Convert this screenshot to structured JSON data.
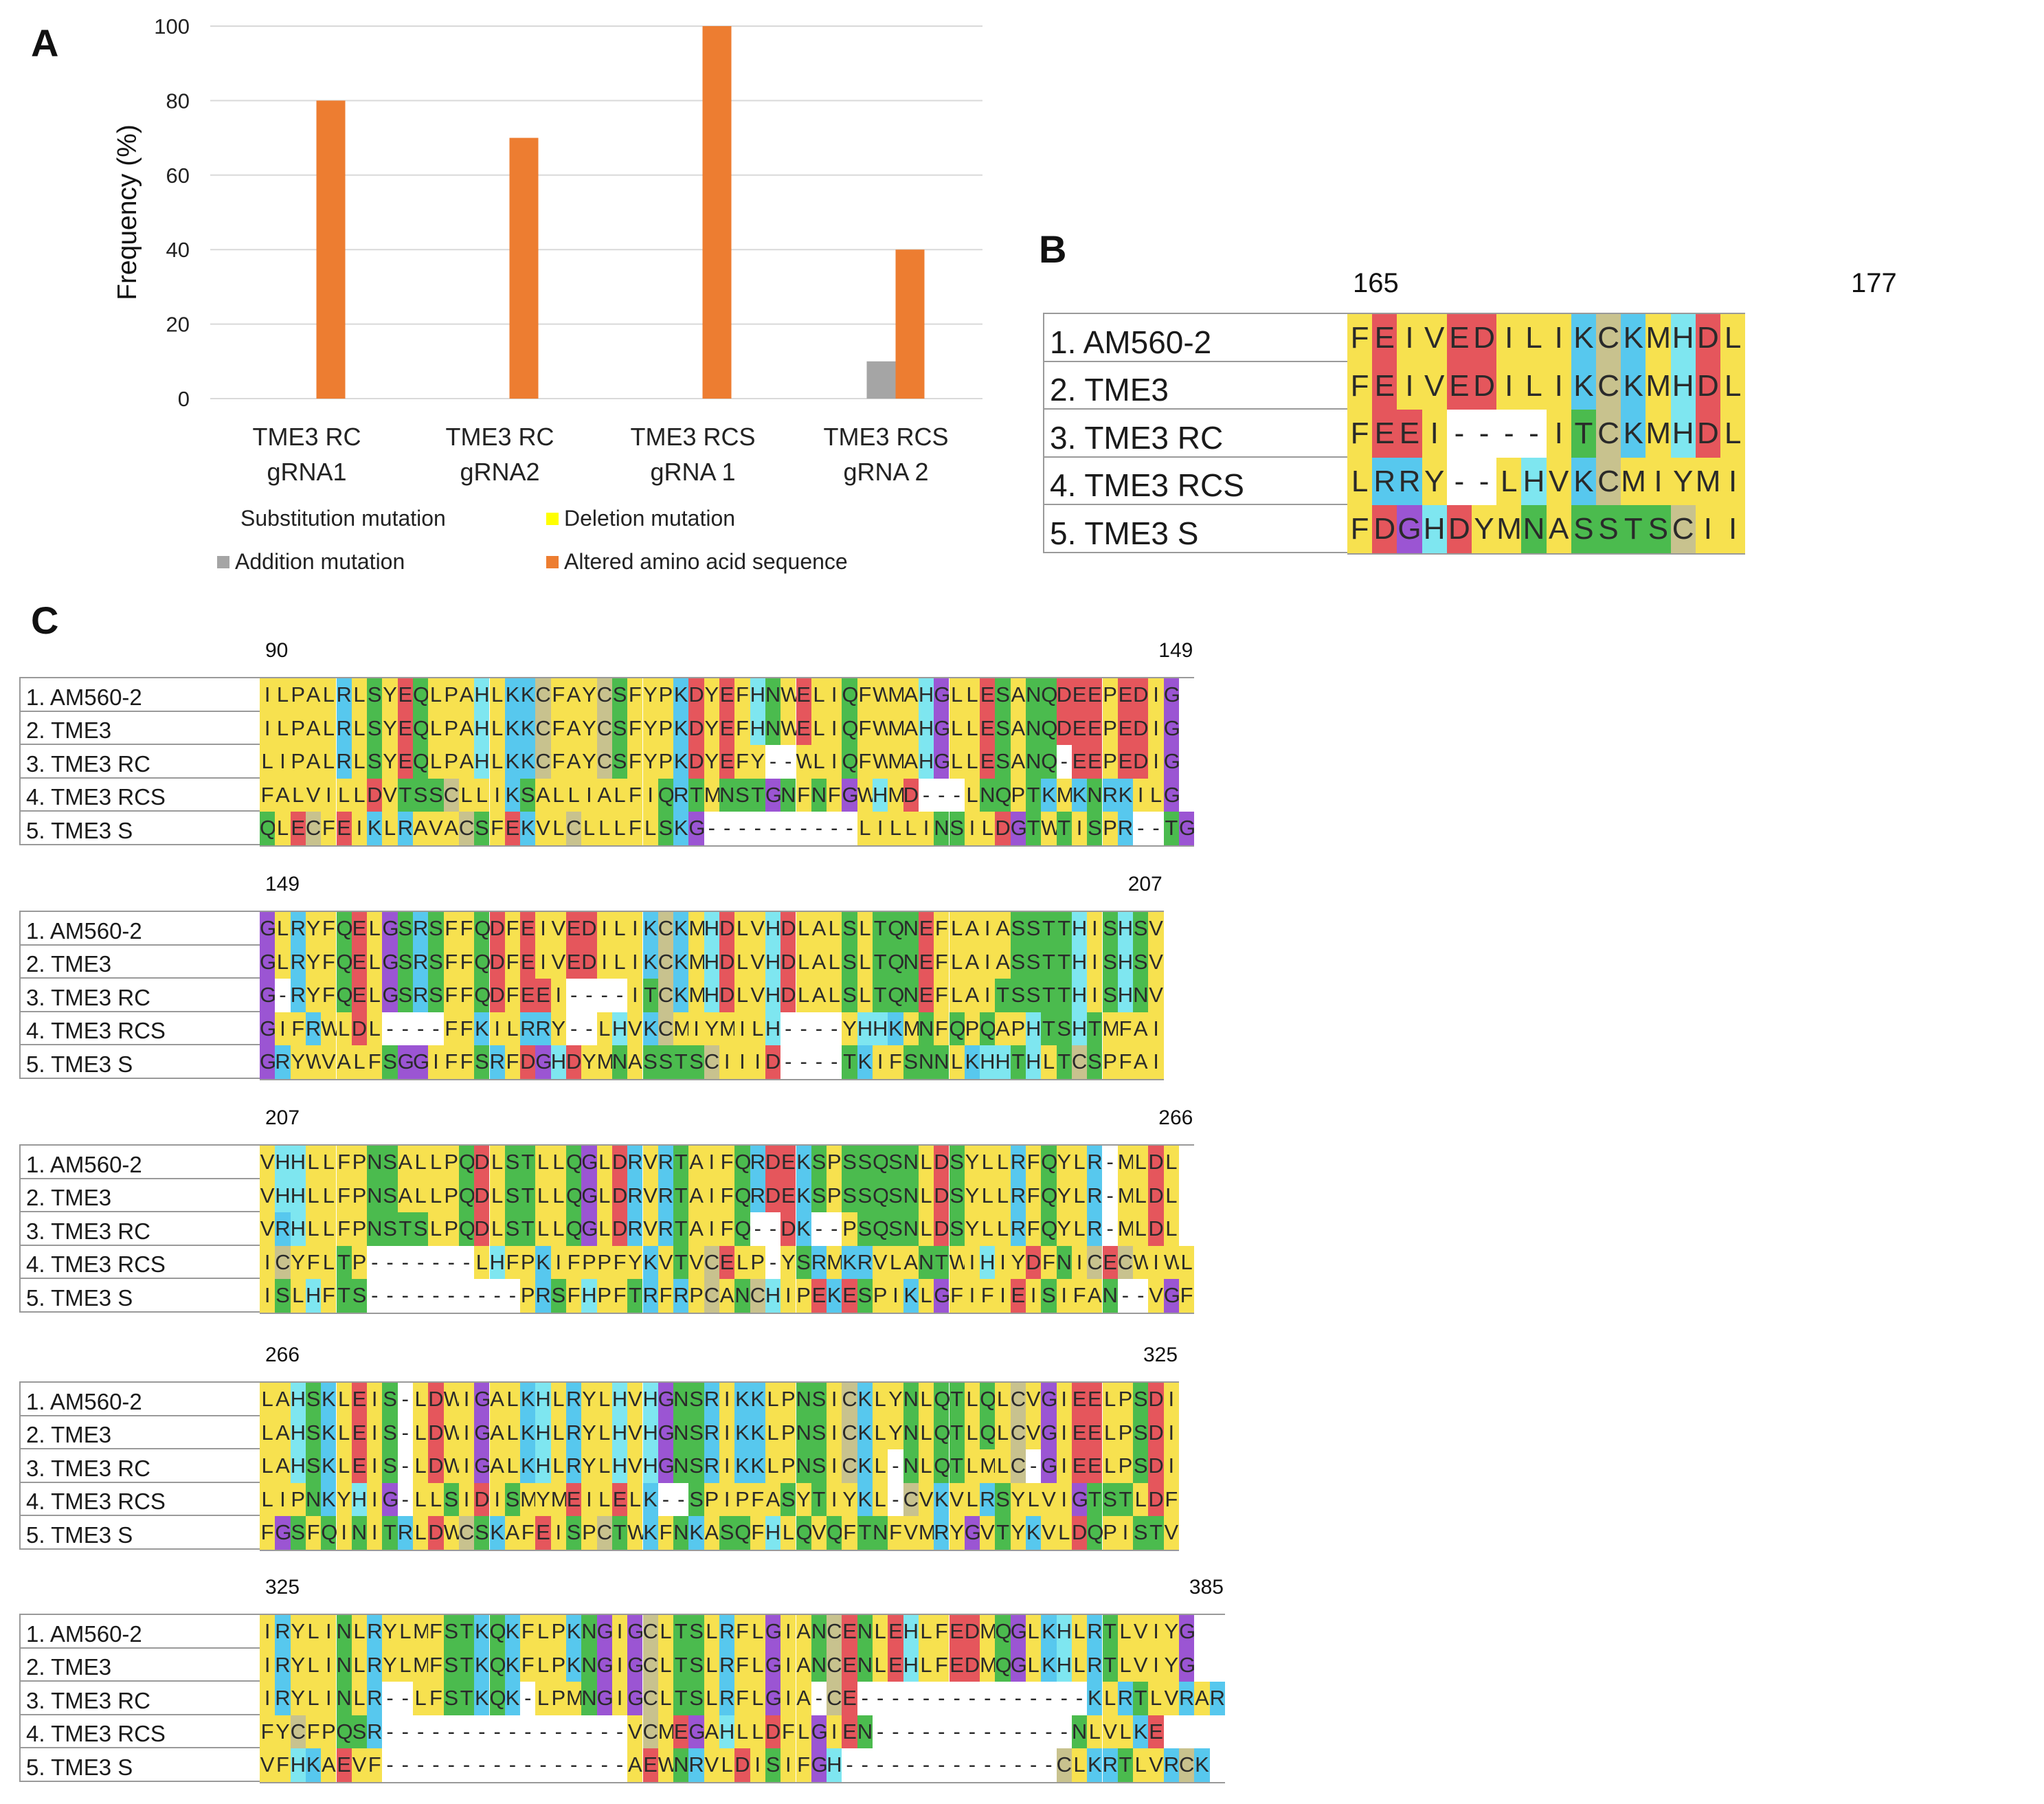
{
  "panels": {
    "a": "A",
    "b": "B",
    "c": "C"
  },
  "chart_data": {
    "type": "bar",
    "ylabel": "Frequency (%)",
    "ylim": [
      0,
      100
    ],
    "yticks": [
      "0",
      "20",
      "40",
      "60",
      "80",
      "100"
    ],
    "categories": [
      [
        "TME3 RC",
        "gRNA1"
      ],
      [
        "TME3 RC",
        "gRNA2"
      ],
      [
        "TME3 RCS",
        "gRNA 1"
      ],
      [
        "TME3 RCS",
        "gRNA 2"
      ]
    ],
    "series": [
      {
        "name": "Substitution mutation",
        "color": "#4472C4",
        "values": [
          0,
          0,
          0,
          0
        ]
      },
      {
        "name": "Deletion mutation",
        "color": "#FFFF00",
        "values": [
          0,
          0,
          0,
          0
        ]
      },
      {
        "name": "Addition mutation",
        "color": "#A5A5A5",
        "values": [
          0,
          0,
          0,
          10
        ]
      },
      {
        "name": "Altered amino acid sequence",
        "color": "#ED7D31",
        "values": [
          80,
          70,
          100,
          40
        ]
      }
    ],
    "grid": true,
    "legend": "bottom"
  },
  "alignment_b": {
    "start": "165",
    "end": "177",
    "names": [
      "1. AM560-2",
      "2. TME3",
      "3. TME3 RC",
      "4. TME3 RCS",
      "5. TME3 S"
    ],
    "seqs": [
      "FEIVEDILIKCKMHDL",
      "FEIVEDILIKCKMHDL",
      "FEEI----ITCKMHDL",
      "LRRY--LHVKCMIYMI",
      "FDGHDYMNASSTSCII"
    ]
  },
  "alignment_c": {
    "names": [
      "1. AM560-2",
      "2. TME3",
      "3. TME3 RC",
      "4. TME3 RCS",
      "5. TME3 S"
    ],
    "blocks": [
      {
        "start": "90",
        "end": "149",
        "seqs": [
          "ILPALRLSYEQLPAHLKKCFAYCSFYPKDYEFHNWELIQFWMAHGLLESANQDEEPEDIG",
          "ILPALRLSYEQLPAHLKKCFAYCSFYPKDYEFHNWELIQFWMAHGLLESANQDEEPEDIG",
          "LIPALRLSYEQLPAHLKKCFAYCSFYPKDYEFY--WLIQFWMAHGLLESANQ-EEPEDIG",
          "FALVILLDVTSSCLLIKSALLIALFIQRTMNSTGNFNFGWHMD---LNQPTKMKNRKILG",
          "QLECFEIKLRAVACSFEKVLCLLLFLSKG----------LILLINSILDGTWTISPR--TG"
        ]
      },
      {
        "start": "149",
        "end": "207",
        "seqs": [
          "GLRYFQELGSRSFFQDFEIVEDILIKCKMHDLVHDLALSLTQNEFLAIASSTTHISHSV",
          "GLRYFQELGSRSFFQDFEIVEDILIKCKMHDLVHDLALSLTQNEFLAIASSTTHISHSV",
          "G-RYFQELGSRSFFQDFEEI----ITCKMHDLVHDLALSLTQNEFLAITSSTTHISHNV",
          "GIFRWLDL----FFKILRRY--LHVKCMIYMILH----YHHKMNFQPQAPHTSHTMFAI",
          "GRYWVALFSGGIFFSRFDGHDYMNASSTSCIIID----TKIFSNNLKHHTHLTCSPFAI"
        ]
      },
      {
        "start": "207",
        "end": "266",
        "seqs": [
          "VHHLLFPNSALLPQDLSTLLQGLDRVRTAIFQRDEKSPSSQSNLDSYLLRFQYLR-MLDL",
          "VHHLLFPNSALLPQDLSTLLQGLDRVRTAIFQRDEKSPSSQSNLDSYLLRFQYLR-MLDL",
          "VRHLLFPNSTSLPQDLSTLLQGLDRVRTAIFQ--DK--PSQSNLDSYLLRFQYLR-MLDL",
          "ICYFLTP-------LHFPKIFPPFYKVTVCELP-YSRMKRVLANTWIHIYDFNICECWIWL",
          "ISLHFTS----------PRSFHPFTRFRPCANCHIPEKESPIKLGFIFIEISIFAN--VGF"
        ]
      },
      {
        "start": "266",
        "end": "325",
        "seqs": [
          "LAHSKLEIS-LDWIGALKHLRYLHVHGNSRIKKLPNSICKLYNLQTLQLCVGIEELPSDI",
          "LAHSKLEIS-LDWIGALKHLRYLHVHGNSRIKKLPNSICKLYNLQTLQLCVGIEELPSDI",
          "LAHSKLEIS-LDWIGALKHLRYLHVHGNSRIKKLPNSICKL-NLQTLMLC-GIEELPSDI",
          "LIPNKYHIG-LLSIDISMYMEILELK--SPIPFASYTIYKL-CVKVLRSYLVIGTSTLDF",
          "FGSFQINITRLDWCSKAFEISPCTWKFNKASQFHLQVQFTNFVMRYGVTYKVLDQPISTV"
        ]
      },
      {
        "start": "325",
        "end": "385",
        "seqs": [
          "IRYLINLRYLMFSTKQKFLPKNGIGCLTSLRFLGIANCENLEHLFEDMQGLKHLRTLVIYG",
          "IRYLINLRYLMFSTKQKFLPKNGIGCLTSLRFLGIANCENLEHLFEDMQGLKHLRTLVIYG",
          "IRYLINLR--LFSTKQK-LPMNGIGCLTSLRFLGIA-CE---------------KLRTLVRAR",
          "FYCFPQSR----------------VCMEGAHLLDFLGIEN-------------NLVLKE",
          "VFHKAEVF----------------AEWNRVLDISIFGH--------------CLKRTLVRCK"
        ]
      }
    ]
  },
  "aa_colors": {
    "D": "#e5565c",
    "E": "#e5565c",
    "K": "#57c8ee",
    "R": "#57c8ee",
    "H": "#7ee6f0",
    "S": "#4bbb4e",
    "T": "#4bbb4e",
    "N": "#4bbb4e",
    "Q": "#4bbb4e",
    "A": "#f7e14f",
    "V": "#f7e14f",
    "L": "#f7e14f",
    "I": "#f7e14f",
    "M": "#f7e14f",
    "F": "#f7e14f",
    "W": "#f7e14f",
    "Y": "#f7e14f",
    "P": "#f7e14f",
    "C": "#c8c28e",
    "G": "#9b55d3",
    "-": "#ffffff"
  }
}
